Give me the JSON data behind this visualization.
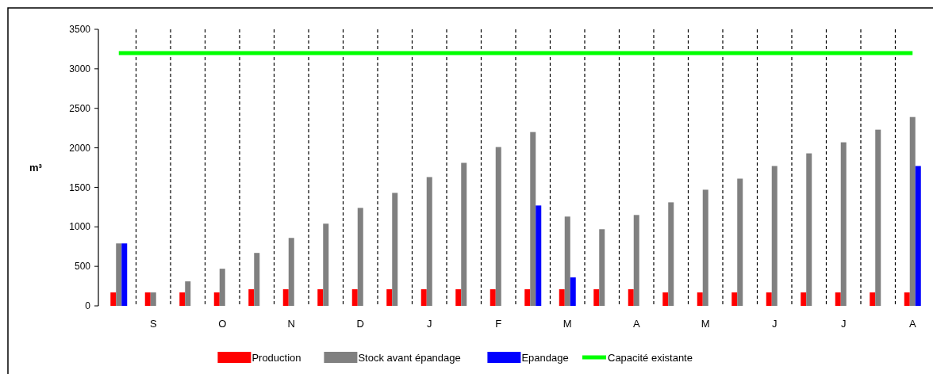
{
  "chart_data": {
    "type": "bar",
    "ylabel": "m³",
    "categories": [
      null,
      "S",
      null,
      "O",
      null,
      "N",
      null,
      "D",
      null,
      "J",
      null,
      "F",
      null,
      "M",
      null,
      "A",
      null,
      "M",
      null,
      "J",
      null,
      "J",
      null,
      "A"
    ],
    "series": [
      {
        "name": "Production",
        "color": "#ff0000",
        "values": [
          170,
          170,
          170,
          170,
          210,
          210,
          210,
          210,
          210,
          210,
          210,
          210,
          210,
          210,
          210,
          210,
          170,
          170,
          170,
          170,
          170,
          170,
          170,
          170
        ]
      },
      {
        "name": "Stock avant épandage",
        "color": "#808080",
        "values": [
          790,
          170,
          310,
          470,
          670,
          860,
          1040,
          1240,
          1430,
          1630,
          1810,
          2010,
          2200,
          1130,
          970,
          1150,
          1310,
          1470,
          1610,
          1770,
          1930,
          2070,
          2230,
          2390
        ]
      },
      {
        "name": "Epandage",
        "color": "#0000ff",
        "values": [
          790,
          null,
          null,
          null,
          null,
          null,
          null,
          null,
          null,
          null,
          null,
          null,
          1270,
          360,
          null,
          null,
          null,
          null,
          null,
          null,
          null,
          null,
          null,
          1770
        ]
      },
      {
        "name": "Capacité existante",
        "type": "line",
        "color": "#00ff00",
        "marker": "none",
        "values": [
          3200,
          3200,
          3200,
          3200,
          3200,
          3200,
          3200,
          3200,
          3200,
          3200,
          3200,
          3200,
          3200,
          3200,
          3200,
          3200,
          3200,
          3200,
          3200,
          3200,
          3200,
          3200,
          3200,
          3200
        ]
      }
    ],
    "ylim": [
      0,
      3500
    ],
    "yticks": [
      0,
      500,
      1000,
      1500,
      2000,
      2500,
      3000,
      3500
    ],
    "grid": "x",
    "legend": "bottom"
  }
}
